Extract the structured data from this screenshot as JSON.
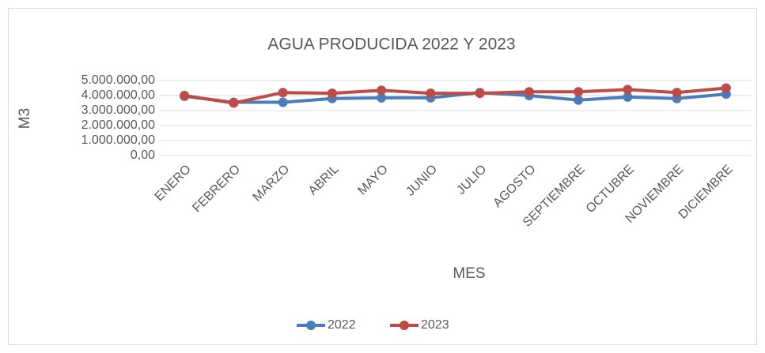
{
  "chart_data": {
    "type": "line",
    "title": "AGUA PRODUCIDA  2022 Y 2023",
    "x_label": "MES",
    "y_label": "M3",
    "categories": [
      "ENERO",
      "FEBRERO",
      "MARZO",
      "ABRIL",
      "MAYO",
      "JUNIO",
      "JULIO",
      "AGOSTO",
      "SEPTIEMBRE",
      "OCTUBRE",
      "NOVIEMBRE",
      "DICIEMBRE"
    ],
    "series": [
      {
        "name": "2022",
        "color": "#4a7ebb",
        "values": [
          3950000,
          3550000,
          3550000,
          3800000,
          3850000,
          3850000,
          4200000,
          4000000,
          3700000,
          3900000,
          3800000,
          4100000
        ]
      },
      {
        "name": "2023",
        "color": "#be4b48",
        "values": [
          4000000,
          3500000,
          4200000,
          4150000,
          4350000,
          4150000,
          4150000,
          4250000,
          4250000,
          4400000,
          4200000,
          4500000
        ]
      }
    ],
    "ylim": [
      0,
      5000000
    ],
    "yticks": [
      {
        "value": 0,
        "label": "0,00"
      },
      {
        "value": 1000000,
        "label": "1.000.000,00"
      },
      {
        "value": 2000000,
        "label": "2.000.000,00"
      },
      {
        "value": 3000000,
        "label": "3.000.000,00"
      },
      {
        "value": 4000000,
        "label": "4.000.000,00"
      },
      {
        "value": 5000000,
        "label": "5.000.000,00"
      }
    ],
    "grid": true,
    "legend": "bottom"
  }
}
